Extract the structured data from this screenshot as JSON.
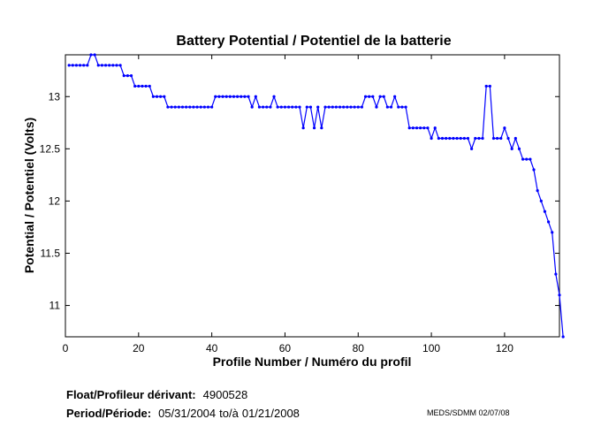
{
  "chart_data": {
    "type": "line",
    "title": "Battery Potential / Potentiel de la batterie",
    "xlabel": "Profile Number / Numéro du profil",
    "ylabel": "Potential / Potentiel (Volts)",
    "xlim": [
      0,
      135
    ],
    "ylim": [
      10.7,
      13.4
    ],
    "x_ticks": [
      0,
      20,
      40,
      60,
      80,
      100,
      120
    ],
    "y_ticks": [
      11,
      11.5,
      12,
      12.5,
      13
    ],
    "y_tick_labels": [
      "11",
      "11.5",
      "12",
      "12.5",
      "13"
    ],
    "series": [
      {
        "color": "#0000ff",
        "values": [
          13.3,
          13.3,
          13.3,
          13.3,
          13.3,
          13.3,
          13.4,
          13.4,
          13.3,
          13.3,
          13.3,
          13.3,
          13.3,
          13.3,
          13.3,
          13.2,
          13.2,
          13.2,
          13.1,
          13.1,
          13.1,
          13.1,
          13.1,
          13.0,
          13.0,
          13.0,
          13.0,
          12.9,
          12.9,
          12.9,
          12.9,
          12.9,
          12.9,
          12.9,
          12.9,
          12.9,
          12.9,
          12.9,
          12.9,
          12.9,
          13.0,
          13.0,
          13.0,
          13.0,
          13.0,
          13.0,
          13.0,
          13.0,
          13.0,
          13.0,
          12.9,
          13.0,
          12.9,
          12.9,
          12.9,
          12.9,
          13.0,
          12.9,
          12.9,
          12.9,
          12.9,
          12.9,
          12.9,
          12.9,
          12.7,
          12.9,
          12.9,
          12.7,
          12.9,
          12.7,
          12.9,
          12.9,
          12.9,
          12.9,
          12.9,
          12.9,
          12.9,
          12.9,
          12.9,
          12.9,
          12.9,
          13.0,
          13.0,
          13.0,
          12.9,
          13.0,
          13.0,
          12.9,
          12.9,
          13.0,
          12.9,
          12.9,
          12.9,
          12.7,
          12.7,
          12.7,
          12.7,
          12.7,
          12.7,
          12.6,
          12.7,
          12.6,
          12.6,
          12.6,
          12.6,
          12.6,
          12.6,
          12.6,
          12.6,
          12.6,
          12.5,
          12.6,
          12.6,
          12.6,
          13.1,
          13.1,
          12.6,
          12.6,
          12.6,
          12.7,
          12.6,
          12.5,
          12.6,
          12.5,
          12.4,
          12.4,
          12.4,
          12.3,
          12.1,
          12.0,
          11.9,
          11.8,
          11.7,
          11.3,
          11.1,
          10.7
        ]
      }
    ],
    "grid": false
  },
  "footer": {
    "float_label": "Float/Profileur dérivant:",
    "float_value": "4900528",
    "period_label": "Period/Période:",
    "period_start": "05/31/2004",
    "period_sep": "to/à",
    "period_end": "01/21/2008",
    "credit": "MEDS/SDMM  02/07/08"
  }
}
